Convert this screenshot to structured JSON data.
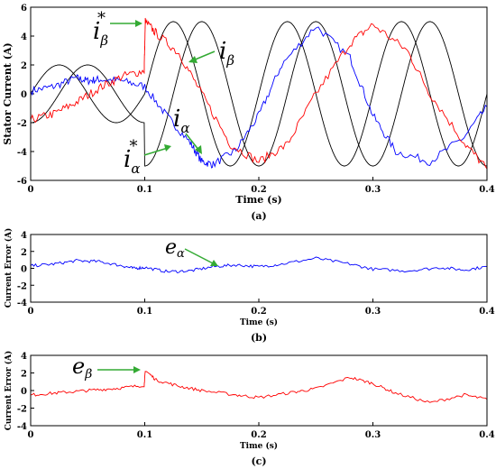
{
  "figure": {
    "caption_a": "(a)",
    "caption_b": "(b)",
    "caption_c": "(c)"
  },
  "colors": {
    "alpha": "#0000ff",
    "beta": "#ff0000",
    "reference": "#000000",
    "arrow": "#33aa33"
  },
  "chart_data": [
    {
      "type": "line",
      "ylabel": "Stator Current (A)",
      "xlabel": "Time (s)",
      "xlim": [
        0,
        0.4
      ],
      "ylim": [
        -6,
        6
      ],
      "xticks": [
        0,
        0.1,
        0.2,
        0.3,
        0.4
      ],
      "yticks": [
        -6,
        -4,
        -2,
        0,
        2,
        4,
        6
      ],
      "reference_waveforms": {
        "alpha_star": {
          "amplitude_A": [
            2,
            5
          ],
          "frequency_Hz": 10,
          "phase": "sine",
          "step_time_s": 0.1
        },
        "beta_star": {
          "amplitude_A": [
            2,
            5
          ],
          "frequency_Hz": 10,
          "phase": "minus cosine",
          "step_time_s": 0.1
        }
      },
      "series": [
        {
          "key": "i_alpha",
          "x": [
            0,
            0.02,
            0.04,
            0.05,
            0.06,
            0.08,
            0.1,
            0.12,
            0.14,
            0.15,
            0.16,
            0.18,
            0.2,
            0.22,
            0.25,
            0.28,
            0.3,
            0.32,
            0.35,
            0.38,
            0.4
          ],
          "y": [
            0.2,
            0.5,
            1.1,
            0.9,
            1.0,
            0.9,
            0.5,
            -1.6,
            -3.4,
            -4.7,
            -4.9,
            -3.9,
            -1.5,
            2.0,
            4.7,
            2.5,
            -1.5,
            -4.0,
            -4.7,
            -3.0,
            -0.9
          ]
        },
        {
          "key": "i_beta",
          "x": [
            0,
            0.02,
            0.04,
            0.06,
            0.08,
            0.0995,
            0.1005,
            0.11,
            0.13,
            0.15,
            0.175,
            0.2,
            0.225,
            0.25,
            0.28,
            0.3,
            0.33,
            0.35,
            0.38,
            0.4
          ],
          "y": [
            -1.8,
            -1.4,
            -0.6,
            0.4,
            1.2,
            1.6,
            5.0,
            4.2,
            2.8,
            0.0,
            -3.5,
            -4.7,
            -3.5,
            0.0,
            3.5,
            4.8,
            3.0,
            0.0,
            -3.4,
            -5.2
          ]
        }
      ],
      "annotations": [
        {
          "base": "i",
          "sub": "β",
          "sup": "*"
        },
        {
          "base": "i",
          "sub": "β"
        },
        {
          "base": "i",
          "sub": "α"
        },
        {
          "base": "i",
          "sub": "α",
          "sup": "*"
        }
      ]
    },
    {
      "type": "line",
      "ylabel": "Current Error (A)",
      "xlabel": "Time (s)",
      "xlim": [
        0,
        0.4
      ],
      "ylim": [
        -4,
        4
      ],
      "xticks": [
        0,
        0.1,
        0.2,
        0.3,
        0.4
      ],
      "yticks": [
        -4,
        -2,
        0,
        2,
        4
      ],
      "series": [
        {
          "key": "e_alpha",
          "x": [
            0,
            0.02,
            0.04,
            0.06,
            0.08,
            0.09,
            0.1,
            0.12,
            0.14,
            0.16,
            0.18,
            0.2,
            0.22,
            0.25,
            0.28,
            0.3,
            0.33,
            0.36,
            0.38,
            0.4
          ],
          "y": [
            0.3,
            0.5,
            0.9,
            0.8,
            0.3,
            0.0,
            0.1,
            -0.4,
            -0.3,
            0.2,
            0.4,
            0.2,
            0.5,
            1.2,
            0.5,
            -0.1,
            -0.3,
            0.1,
            -0.2,
            0.2
          ]
        }
      ],
      "annotations": [
        {
          "base": "e",
          "sub": "α"
        }
      ]
    },
    {
      "type": "line",
      "ylabel": "Current Error (A)",
      "xlabel": "Time (s)",
      "xlim": [
        0,
        0.4
      ],
      "ylim": [
        -4,
        4
      ],
      "xticks": [
        0,
        0.1,
        0.2,
        0.3,
        0.4
      ],
      "yticks": [
        -4,
        -2,
        0,
        2,
        4
      ],
      "series": [
        {
          "key": "e_beta",
          "x": [
            0,
            0.02,
            0.04,
            0.06,
            0.08,
            0.0995,
            0.1005,
            0.11,
            0.13,
            0.15,
            0.18,
            0.2,
            0.23,
            0.25,
            0.28,
            0.3,
            0.32,
            0.35,
            0.38,
            0.4
          ],
          "y": [
            -0.5,
            -0.3,
            -0.1,
            0.1,
            0.3,
            0.6,
            2.3,
            1.2,
            0.5,
            0.0,
            -0.5,
            -0.8,
            -0.2,
            0.2,
            1.5,
            0.8,
            -0.3,
            -1.4,
            -0.5,
            -1.0
          ]
        }
      ],
      "annotations": [
        {
          "base": "e",
          "sub": "β"
        }
      ]
    }
  ]
}
